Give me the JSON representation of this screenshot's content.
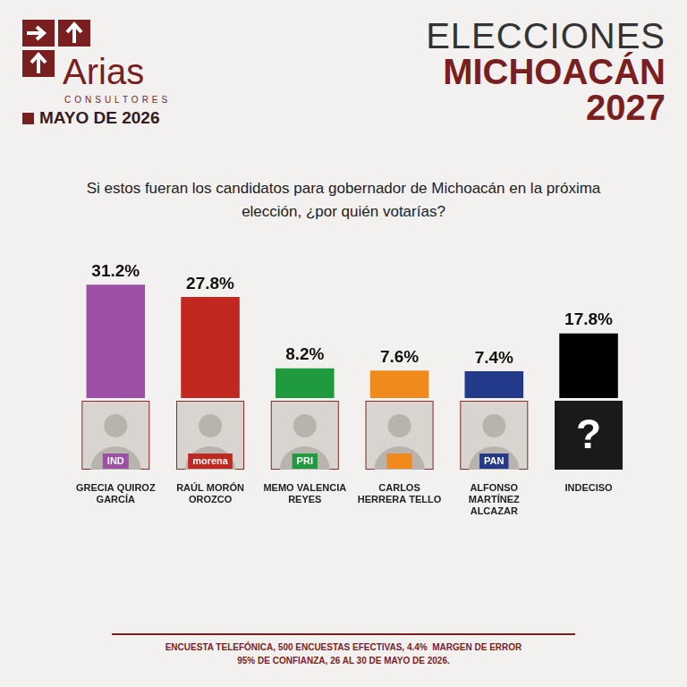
{
  "header": {
    "brand": "Arias",
    "brand_sub": "CONSULTORES",
    "date": "MAYO DE 2026",
    "title_lines": [
      "ELECCIONES",
      "MICHOACÁN",
      "2027"
    ]
  },
  "chart_data": {
    "type": "bar",
    "title": "Si estos fueran los candidatos para gobernador de Michoacán en la próxima elección, ¿por quién votarías?",
    "categories": [
      "GRECIA QUIROZ GARCÍA",
      "RAÚL MORÓN OROZCO",
      "MEMO VALENCIA REYES",
      "CARLOS HERRERA TELLO",
      "ALFONSO MARTÍNEZ ALCAZAR",
      "INDECISO"
    ],
    "values": [
      31.2,
      27.8,
      8.2,
      7.6,
      7.4,
      17.8
    ],
    "value_labels": [
      "31.2%",
      "27.8%",
      "8.2%",
      "7.6%",
      "7.4%",
      "17.8%"
    ],
    "badges": [
      "IND",
      "morena",
      "PRI",
      null,
      "PAN",
      "?"
    ],
    "colors": [
      "#9b4fa5",
      "#c0281f",
      "#1f9a3f",
      "#f08a1c",
      "#23398a",
      "#000000"
    ],
    "ylim": [
      0,
      32
    ],
    "yticks": [
      0,
      32
    ],
    "grid": false,
    "data_labels": true,
    "tick_labels": "x"
  },
  "footer": [
    "ENCUESTA TELEFÓNICA, 500 ENCUESTAS EFECTIVAS, 4.4%  MARGEN DE ERROR",
    "95% DE CONFIANZA, 26 AL 30 DE MAYO DE 2026."
  ]
}
